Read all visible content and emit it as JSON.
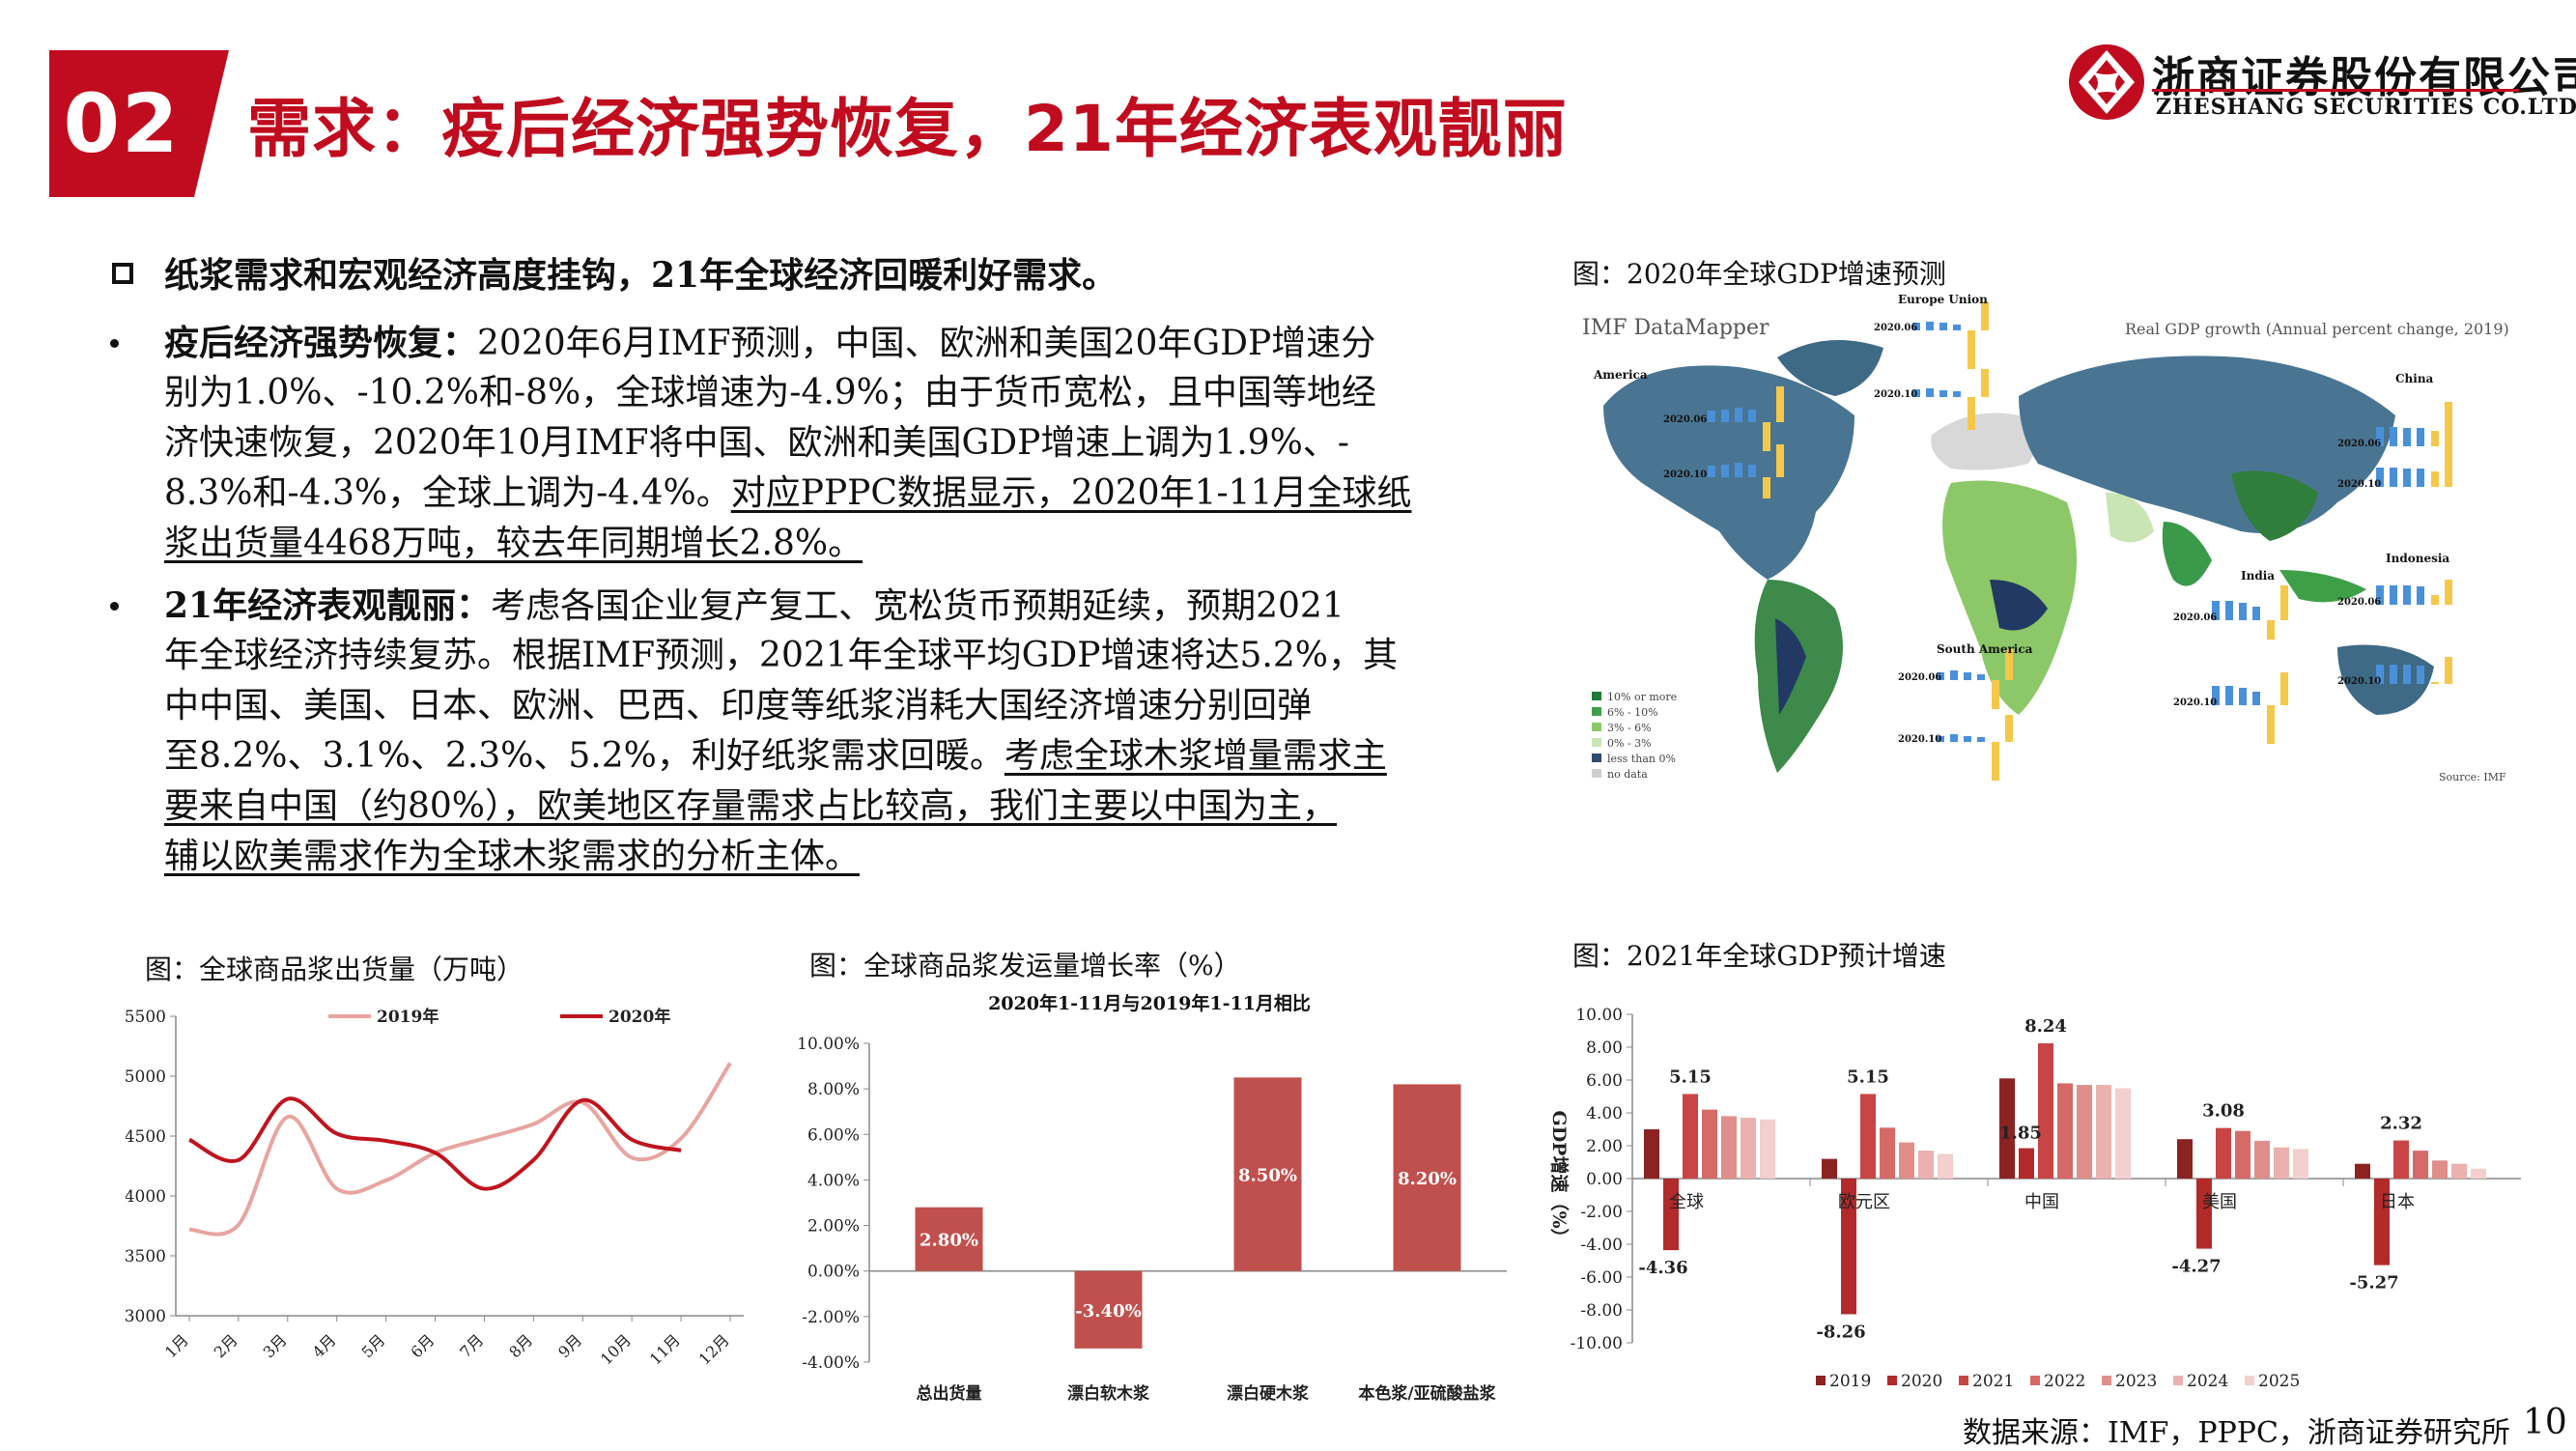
{
  "header": {
    "section_number": "02",
    "title": "需求：疫后经济强势恢复，21年经济表观靓丽",
    "company_cn": "浙商证券股份有限公司",
    "company_en": "ZHESHANG SECURITIES CO.LTD"
  },
  "body": {
    "main_point": "纸浆需求和宏观经济高度挂钩，21年全球经济回暖利好需求。",
    "bullet1": {
      "lead": "疫后经济强势恢复：",
      "line1": "2020年6月IMF预测，中国、欧洲和美国20年GDP增速分",
      "line2": "别为1.0%、-10.2%和-8%，全球增速为-4.9%；由于货币宽松，且中国等地经",
      "line3": "济快速恢复，2020年10月IMF将中国、欧洲和美国GDP增速上调为1.9%、-",
      "line4a": "8.3%和-4.3%，全球上调为-4.4%。",
      "line4b": "对应PPPC数据显示，2020年1-11月全球纸",
      "line5": "浆出货量4468万吨，较去年同期增长2.8%。"
    },
    "bullet2": {
      "lead": "21年经济表观靓丽：",
      "line1": "考虑各国企业复产复工、宽松货币预期延续，预期2021",
      "line2": "年全球经济持续复苏。根据IMF预测，2021年全球平均GDP增速将达5.2%，其",
      "line3": "中中国、美国、日本、欧洲、巴西、印度等纸浆消耗大国经济增速分别回弹",
      "line4a": "至8.2%、3.1%、2.3%、5.2%，利好纸浆需求回暖。",
      "line4b": "考虑全球木浆增量需求主",
      "line5": "要来自中国（约80%），欧美地区存量需求占比较高，我们主要以中国为主，",
      "line6": "辅以欧美需求作为全球木浆需求的分析主体。"
    }
  },
  "map_figure": {
    "caption": "图：2020年全球GDP增速预测",
    "brand": "IMF DataMapper",
    "subtitle": "Real GDP growth (Annual percent change, 2019)",
    "source": "Source: IMF",
    "legend": [
      "10% or more",
      "6% - 10%",
      "3% - 6%",
      "0% - 3%",
      "less than 0%",
      "no data"
    ],
    "legend_colors": [
      "#1b7a3a",
      "#3f9f49",
      "#8cc867",
      "#c9e4b5",
      "#2e4a6e",
      "#cfcfcf"
    ],
    "regions": [
      "Europe Union",
      "China",
      "America",
      "Indonesia",
      "India",
      "South America"
    ],
    "row_labels": [
      "2020.06",
      "2020.10"
    ]
  },
  "chart1": {
    "caption": "图：全球商品浆出货量（万吨）",
    "chart_data": {
      "type": "line",
      "categories": [
        "1月",
        "2月",
        "3月",
        "4月",
        "5月",
        "6月",
        "7月",
        "8月",
        "9月",
        "10月",
        "11月",
        "12月"
      ],
      "ylim": [
        3000,
        5500
      ],
      "yticks": [
        "5500",
        "5000",
        "4500",
        "4000",
        "3500",
        "3000"
      ],
      "series": [
        {
          "name": "2019年",
          "color": "#e8a49f",
          "values": [
            3720,
            3760,
            4660,
            4060,
            4130,
            4360,
            4480,
            4600,
            4780,
            4320,
            4480,
            5110
          ]
        },
        {
          "name": "2020年",
          "color": "#c0141e",
          "values": [
            4470,
            4300,
            4810,
            4520,
            4460,
            4360,
            4060,
            4300,
            4800,
            4470,
            4380,
            null
          ]
        }
      ],
      "grid": false,
      "legend": "top"
    }
  },
  "chart2": {
    "caption": "图：全球商品浆发运量增长率（%）",
    "chart_data": {
      "type": "bar",
      "title": "2020年1-11月与2019年1-11月相比",
      "categories": [
        "总出货量",
        "漂白软木浆",
        "漂白硬木浆",
        "本色浆/亚硫酸盐浆"
      ],
      "values": [
        2.8,
        -3.4,
        8.5,
        8.2
      ],
      "data_labels": [
        "2.80%",
        "-3.40%",
        "8.50%",
        "8.20%"
      ],
      "ylim": [
        -4,
        10
      ],
      "yticks": [
        "10.00%",
        "8.00%",
        "6.00%",
        "4.00%",
        "2.00%",
        "0.00%",
        "-2.00%",
        "-4.00%"
      ],
      "color": "#c0504d"
    }
  },
  "chart3": {
    "caption": "图：2021年全球GDP预计增速",
    "chart_data": {
      "type": "bar",
      "ylabel": "GDP增速（%）",
      "categories": [
        "全球",
        "欧元区",
        "中国",
        "美国",
        "日本"
      ],
      "ylim": [
        -10,
        10
      ],
      "yticks": [
        "10.00",
        "8.00",
        "6.00",
        "4.00",
        "2.00",
        "0.00",
        "-2.00",
        "-4.00",
        "-6.00",
        "-8.00",
        "-10.00"
      ],
      "series": [
        {
          "name": "2019",
          "color": "#8b2323",
          "values": [
            3.0,
            1.2,
            6.1,
            2.4,
            0.9
          ]
        },
        {
          "name": "2020",
          "color": "#b22a2a",
          "values": [
            -4.36,
            -8.26,
            1.85,
            -4.27,
            -5.27
          ]
        },
        {
          "name": "2021",
          "color": "#c94545",
          "values": [
            5.15,
            5.15,
            8.24,
            3.08,
            2.32
          ]
        },
        {
          "name": "2022",
          "color": "#d66a66",
          "values": [
            4.2,
            3.1,
            5.8,
            2.9,
            1.7
          ]
        },
        {
          "name": "2023",
          "color": "#e08e8a",
          "values": [
            3.8,
            2.2,
            5.7,
            2.3,
            1.1
          ]
        },
        {
          "name": "2024",
          "color": "#ebb1ae",
          "values": [
            3.7,
            1.7,
            5.7,
            1.9,
            0.9
          ]
        },
        {
          "name": "2025",
          "color": "#f3cfcd",
          "values": [
            3.6,
            1.5,
            5.5,
            1.8,
            0.6
          ]
        }
      ],
      "data_labels": [
        {
          "text": "5.15"
        },
        {
          "text": "-4.36"
        },
        {
          "text": "5.15"
        },
        {
          "text": "-8.26"
        },
        {
          "text": "8.24"
        },
        {
          "text": "1.85"
        },
        {
          "text": "3.08"
        },
        {
          "text": "-4.27"
        },
        {
          "text": "2.32"
        },
        {
          "text": "-5.27"
        }
      ],
      "legend": "bottom"
    }
  },
  "footer": {
    "source": "数据来源：IMF，PPPC，浙商证券研究所",
    "page": "10"
  }
}
